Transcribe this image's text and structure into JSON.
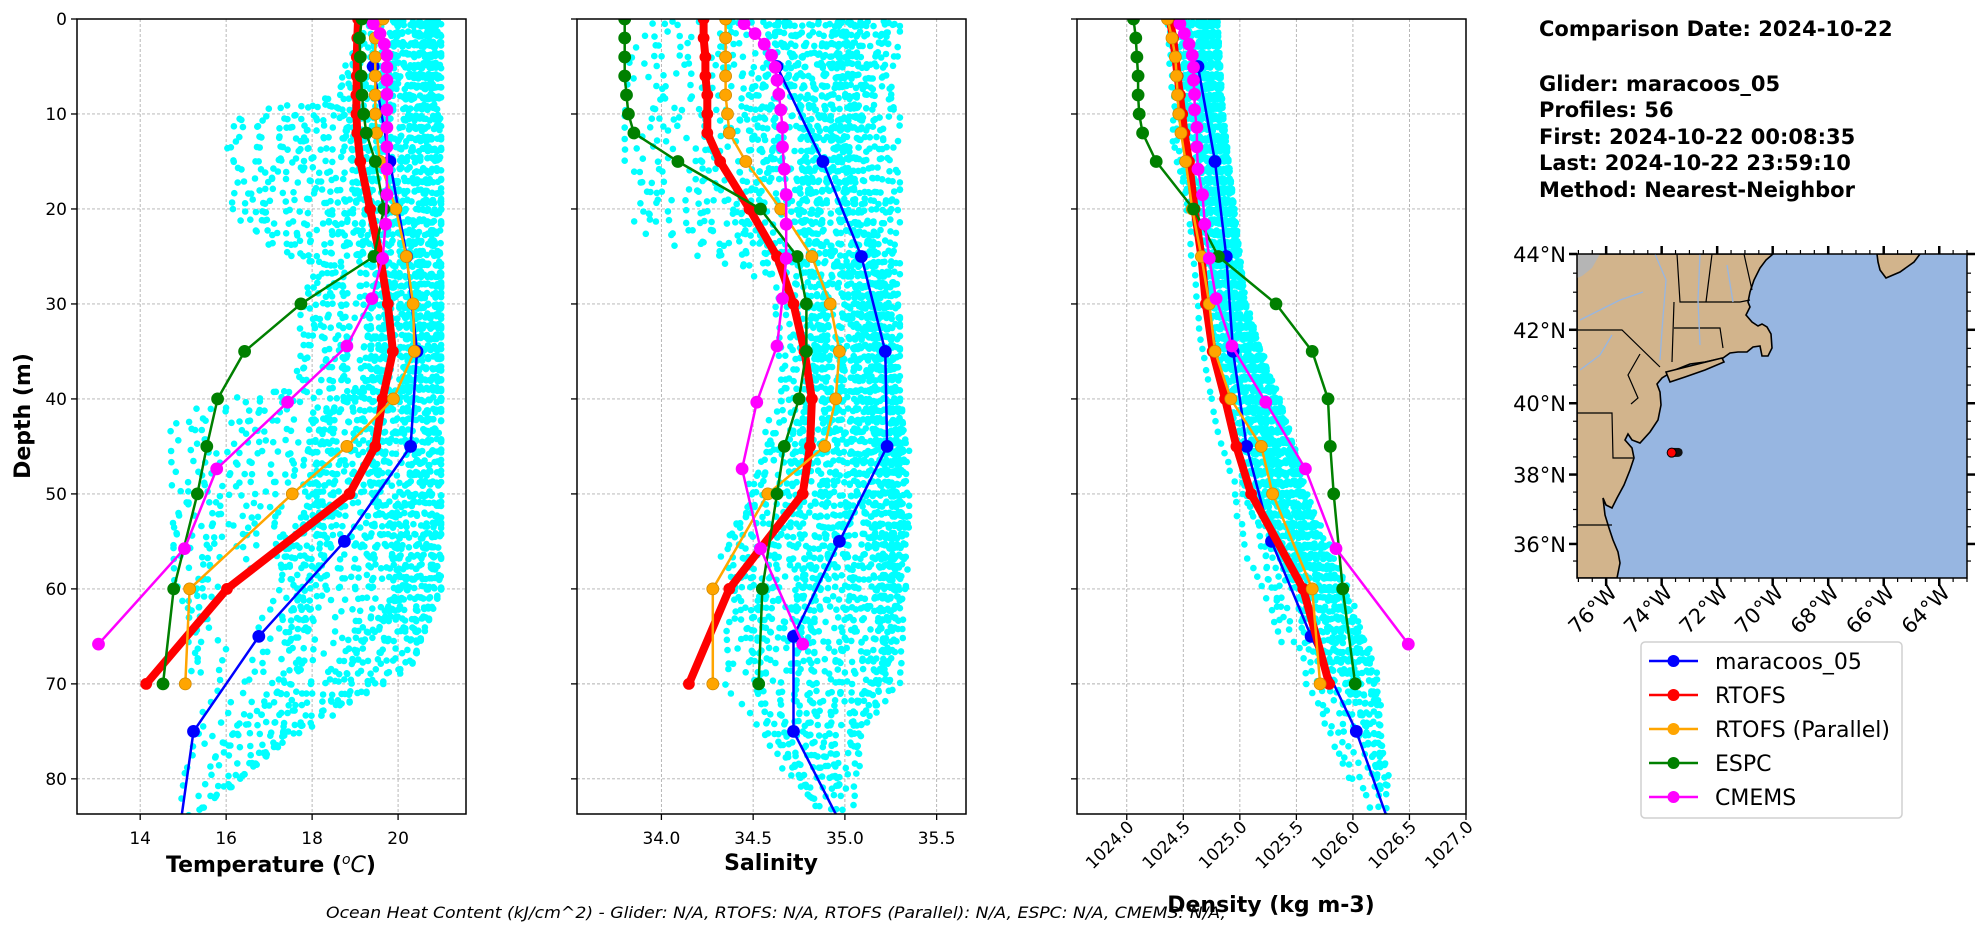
{
  "info": {
    "comparison_date": "Comparison Date: 2024-10-22",
    "glider": "Glider: maracoos_05",
    "profiles": "Profiles: 56",
    "first": "First: 2024-10-22 00:08:35",
    "last": "Last: 2024-10-22 23:59:10",
    "method": "Method: Nearest-Neighbor"
  },
  "footer": "Ocean Heat Content (kJ/cm^2) - Glider: N/A,  RTOFS: N/A,  RTOFS (Parallel): N/A,  ESPC: N/A,  CMEMS: N/A,",
  "legend": [
    {
      "label": "maracoos_05",
      "color": "#0000ff"
    },
    {
      "label": "RTOFS",
      "color": "#ff0000"
    },
    {
      "label": "RTOFS (Parallel)",
      "color": "#ffa500"
    },
    {
      "label": "ESPC",
      "color": "#008000"
    },
    {
      "label": "CMEMS",
      "color": "#ff00ff"
    }
  ],
  "colors": {
    "glider_scatter": "#00ffff",
    "grid": "#b0b0b0",
    "ocean": "#97b6e1",
    "land": "#d2b48c"
  },
  "map": {
    "xlim": [
      -77.05,
      -63.0
    ],
    "ylim": [
      35.0,
      44.0
    ],
    "lat_ticks": [
      36,
      38,
      40,
      42,
      44
    ],
    "lat_tick_labels": [
      "36°N",
      "38°N",
      "40°N",
      "42°N",
      "44°N"
    ],
    "lon_ticks": [
      -76,
      -74,
      -72,
      -70,
      -68,
      -66,
      -64
    ],
    "lon_tick_labels": [
      "76°W",
      "74°W",
      "72°W",
      "70°W",
      "68°W",
      "66°W",
      "64°W"
    ],
    "glider_position": {
      "lon": -73.64,
      "lat": 38.62
    }
  },
  "chart_data": [
    {
      "type": "line",
      "panel": "temperature",
      "xlabel": "Temperature (°C)",
      "ylabel": "Depth (m)",
      "xlim": [
        12.53,
        21.58
      ],
      "ylim": [
        83.7,
        0
      ],
      "xticks": [
        14,
        16,
        18,
        20
      ],
      "yticks": [
        0,
        10,
        20,
        30,
        40,
        50,
        60,
        70,
        80
      ],
      "grid": true,
      "scatter_envelope": [
        [
          0,
          18.9,
          21.0
        ],
        [
          8,
          18.3,
          21.0
        ],
        [
          10,
          15.8,
          21.0
        ],
        [
          22,
          15.8,
          21.0
        ],
        [
          26,
          17.6,
          21.0
        ],
        [
          38,
          17.6,
          21.0
        ],
        [
          42,
          14.7,
          21.0
        ],
        [
          60,
          14.8,
          21.0
        ],
        [
          68,
          14.8,
          20.3
        ],
        [
          75,
          14.7,
          17.8
        ],
        [
          84,
          14.8,
          15.2
        ]
      ],
      "series": [
        {
          "name": "maracoos_05",
          "depth": [
            5,
            15,
            25,
            35,
            45,
            55,
            65,
            75,
            83.7
          ],
          "values": [
            19.42,
            19.81,
            20.2,
            20.44,
            20.29,
            18.75,
            16.76,
            15.24,
            14.97
          ],
          "markers": [
            1,
            1,
            1,
            1,
            1,
            1,
            1,
            1,
            0
          ]
        },
        {
          "name": "RTOFS",
          "depth": [
            0,
            2,
            4,
            6,
            8,
            10,
            12,
            15,
            20,
            25,
            30,
            35,
            40,
            45,
            50,
            60,
            70
          ],
          "values": [
            19.07,
            19.05,
            19.04,
            19.04,
            19.03,
            19.03,
            19.05,
            19.12,
            19.35,
            19.58,
            19.76,
            19.88,
            19.64,
            19.47,
            18.87,
            16.02,
            14.14
          ]
        },
        {
          "name": "RTOFS (Parallel)",
          "depth": [
            0,
            2,
            4,
            6,
            8,
            10,
            12,
            15,
            20,
            25,
            30,
            35,
            40,
            45,
            50,
            60,
            70
          ],
          "values": [
            19.65,
            19.47,
            19.47,
            19.47,
            19.47,
            19.47,
            19.5,
            19.58,
            19.95,
            20.19,
            20.35,
            20.38,
            19.89,
            18.81,
            17.54,
            15.15,
            15.05
          ]
        },
        {
          "name": "ESPC",
          "depth": [
            0,
            2,
            4,
            6,
            8,
            10,
            12,
            15,
            20,
            25,
            30,
            35,
            40,
            45,
            50,
            60,
            70
          ],
          "values": [
            19.16,
            19.1,
            19.12,
            19.14,
            19.16,
            19.2,
            19.26,
            19.47,
            19.67,
            19.44,
            17.74,
            16.43,
            15.8,
            15.55,
            15.33,
            14.78,
            14.53
          ]
        },
        {
          "name": "CMEMS",
          "depth": [
            0.49,
            1.54,
            2.65,
            3.82,
            5.08,
            6.44,
            7.93,
            9.57,
            11.41,
            13.47,
            15.81,
            18.5,
            21.6,
            25.21,
            29.44,
            34.43,
            40.34,
            47.37,
            55.76,
            65.81
          ],
          "values": [
            19.42,
            19.58,
            19.68,
            19.74,
            19.74,
            19.74,
            19.74,
            19.74,
            19.74,
            19.74,
            19.74,
            19.74,
            19.71,
            19.64,
            19.39,
            18.81,
            17.43,
            15.78,
            15.03,
            13.03
          ]
        }
      ]
    },
    {
      "type": "line",
      "panel": "salinity",
      "xlabel": "Salinity",
      "xlim": [
        33.54,
        35.66
      ],
      "ylim": [
        83.7,
        0
      ],
      "xticks": [
        34.0,
        34.5,
        35.0,
        35.5
      ],
      "yticks": [
        0,
        10,
        20,
        30,
        40,
        50,
        60,
        70,
        80
      ],
      "grid": true,
      "scatter_envelope": [
        [
          0,
          33.85,
          35.3
        ],
        [
          10,
          33.8,
          35.3
        ],
        [
          22,
          33.8,
          35.3
        ],
        [
          28,
          34.6,
          35.3
        ],
        [
          40,
          34.6,
          35.3
        ],
        [
          45,
          34.5,
          35.35
        ],
        [
          55,
          34.3,
          35.35
        ],
        [
          70,
          34.35,
          35.3
        ],
        [
          75,
          34.5,
          35.1
        ],
        [
          84,
          34.85,
          35.05
        ]
      ],
      "series": [
        {
          "name": "maracoos_05",
          "depth": [
            5,
            15,
            25,
            35,
            45,
            55,
            65,
            75,
            83.7
          ],
          "values": [
            34.63,
            34.88,
            35.09,
            35.22,
            35.23,
            34.97,
            34.72,
            34.72,
            34.95
          ],
          "markers": [
            1,
            1,
            1,
            1,
            1,
            1,
            1,
            1,
            0
          ]
        },
        {
          "name": "RTOFS",
          "depth": [
            0,
            2,
            4,
            6,
            8,
            10,
            12,
            15,
            20,
            25,
            30,
            35,
            40,
            45,
            50,
            60,
            70
          ],
          "values": [
            34.23,
            34.23,
            34.24,
            34.24,
            34.25,
            34.25,
            34.25,
            34.32,
            34.48,
            34.63,
            34.72,
            34.78,
            34.82,
            34.81,
            34.77,
            34.37,
            34.15
          ]
        },
        {
          "name": "RTOFS (Parallel)",
          "depth": [
            0,
            2,
            4,
            6,
            8,
            10,
            12,
            15,
            20,
            25,
            30,
            35,
            40,
            45,
            50,
            60,
            70
          ],
          "values": [
            34.35,
            34.35,
            34.35,
            34.35,
            34.35,
            34.36,
            34.37,
            34.46,
            34.65,
            34.82,
            34.92,
            34.97,
            34.95,
            34.89,
            34.58,
            34.28,
            34.28
          ]
        },
        {
          "name": "ESPC",
          "depth": [
            0,
            2,
            4,
            6,
            8,
            10,
            12,
            15,
            20,
            25,
            30,
            35,
            40,
            45,
            50,
            60,
            70
          ],
          "values": [
            33.8,
            33.8,
            33.8,
            33.8,
            33.81,
            33.82,
            33.85,
            34.09,
            34.54,
            34.74,
            34.79,
            34.79,
            34.75,
            34.67,
            34.63,
            34.55,
            34.53
          ]
        },
        {
          "name": "CMEMS",
          "depth": [
            0.49,
            1.54,
            2.65,
            3.82,
            5.08,
            6.44,
            7.93,
            9.57,
            11.41,
            13.47,
            15.81,
            18.5,
            21.6,
            25.21,
            29.44,
            34.43,
            40.34,
            47.37,
            55.76,
            65.81
          ],
          "values": [
            34.45,
            34.51,
            34.56,
            34.6,
            34.62,
            34.63,
            34.64,
            34.65,
            34.66,
            34.66,
            34.67,
            34.68,
            34.68,
            34.68,
            34.66,
            34.63,
            34.52,
            34.44,
            34.54,
            34.77
          ]
        }
      ]
    },
    {
      "type": "line",
      "panel": "density",
      "xlabel": "Density (kg m-3)",
      "xlim": [
        1023.56,
        1027.0
      ],
      "ylim": [
        83.7,
        0
      ],
      "xticks": [
        1024.0,
        1024.5,
        1025.0,
        1025.5,
        1026.0,
        1026.5,
        1027.0
      ],
      "yticks": [
        0,
        10,
        20,
        30,
        40,
        50,
        60,
        70,
        80
      ],
      "grid": true,
      "scatter_envelope": [
        [
          0,
          1024.3,
          1024.8
        ],
        [
          10,
          1024.35,
          1024.85
        ],
        [
          20,
          1024.45,
          1024.95
        ],
        [
          30,
          1024.6,
          1025.05
        ],
        [
          40,
          1024.75,
          1025.35
        ],
        [
          50,
          1024.9,
          1025.6
        ],
        [
          60,
          1025.15,
          1025.95
        ],
        [
          70,
          1025.45,
          1026.25
        ],
        [
          80,
          1025.85,
          1026.35
        ],
        [
          84,
          1026.0,
          1026.35
        ]
      ],
      "series": [
        {
          "name": "maracoos_05",
          "depth": [
            5,
            15,
            25,
            35,
            45,
            55,
            65,
            75,
            83.7
          ],
          "values": [
            1024.63,
            1024.78,
            1024.88,
            1024.94,
            1025.06,
            1025.28,
            1025.63,
            1026.03,
            1026.29
          ],
          "markers": [
            1,
            1,
            1,
            1,
            1,
            1,
            1,
            1,
            0
          ]
        },
        {
          "name": "RTOFS",
          "depth": [
            0,
            2,
            4,
            6,
            8,
            10,
            12,
            15,
            20,
            25,
            30,
            35,
            40,
            45,
            50,
            60,
            70
          ],
          "values": [
            1024.38,
            1024.41,
            1024.43,
            1024.45,
            1024.47,
            1024.49,
            1024.51,
            1024.55,
            1024.6,
            1024.66,
            1024.7,
            1024.76,
            1024.87,
            1024.97,
            1025.1,
            1025.56,
            1025.79
          ]
        },
        {
          "name": "RTOFS (Parallel)",
          "depth": [
            0,
            2,
            4,
            6,
            8,
            10,
            12,
            15,
            20,
            25,
            30,
            35,
            40,
            45,
            50,
            60,
            70
          ],
          "values": [
            1024.36,
            1024.4,
            1024.43,
            1024.44,
            1024.45,
            1024.46,
            1024.48,
            1024.52,
            1024.58,
            1024.66,
            1024.73,
            1024.78,
            1024.92,
            1025.19,
            1025.29,
            1025.64,
            1025.71
          ]
        },
        {
          "name": "ESPC",
          "depth": [
            0,
            2,
            4,
            6,
            8,
            10,
            12,
            15,
            20,
            25,
            30,
            35,
            40,
            45,
            50,
            60,
            70
          ],
          "values": [
            1024.06,
            1024.08,
            1024.09,
            1024.1,
            1024.1,
            1024.11,
            1024.14,
            1024.26,
            1024.59,
            1024.81,
            1025.32,
            1025.64,
            1025.78,
            1025.8,
            1025.83,
            1025.91,
            1026.02
          ]
        },
        {
          "name": "CMEMS",
          "depth": [
            0.49,
            1.54,
            2.65,
            3.82,
            5.08,
            6.44,
            7.93,
            9.57,
            11.41,
            13.47,
            15.81,
            18.5,
            21.6,
            25.21,
            29.44,
            34.43,
            40.34,
            47.37,
            55.76,
            65.81
          ],
          "values": [
            1024.47,
            1024.51,
            1024.55,
            1024.58,
            1024.59,
            1024.59,
            1024.6,
            1024.6,
            1024.62,
            1024.62,
            1024.63,
            1024.67,
            1024.69,
            1024.73,
            1024.79,
            1024.93,
            1025.23,
            1025.58,
            1025.85,
            1026.49
          ]
        }
      ]
    }
  ]
}
